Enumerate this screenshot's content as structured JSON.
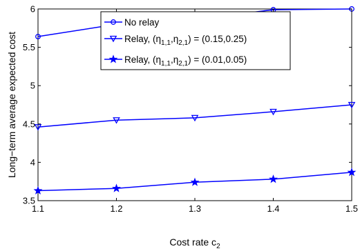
{
  "chart_data": {
    "type": "line",
    "xlabel": "Cost rate c",
    "xlabel_sub": "2",
    "ylabel": "Long−term average expected cost",
    "xlim": [
      1.1,
      1.5
    ],
    "ylim": [
      3.5,
      6
    ],
    "xticks": [
      "1.1",
      "1.2",
      "1.3",
      "1.4",
      "1.5"
    ],
    "yticks": [
      "3.5",
      "4",
      "4.5",
      "5",
      "5.5",
      "6"
    ],
    "grid": false,
    "legend_position": "top-center",
    "x": [
      1.1,
      1.2,
      1.3,
      1.4,
      1.5
    ],
    "series": [
      {
        "name": "No relay",
        "marker": "circle",
        "values": [
          5.64,
          5.8,
          5.87,
          5.99,
          6.0
        ],
        "legend": {
          "main": "No relay"
        }
      },
      {
        "name": "Relay, (η1,1,η2,1) = (0.15,0.25)",
        "marker": "triangle-down",
        "values": [
          4.46,
          4.55,
          4.58,
          4.66,
          4.75
        ],
        "legend": {
          "prefix": "Relay, (η",
          "sub1": "1,1",
          "mid": ",η",
          "sub2": "2,1",
          "suffix": ") = (0.15,0.25)"
        }
      },
      {
        "name": "Relay, (η1,1,η2,1) = (0.01,0.05)",
        "marker": "star",
        "values": [
          3.63,
          3.66,
          3.74,
          3.78,
          3.87
        ],
        "legend": {
          "prefix": "Relay, (η",
          "sub1": "1,1",
          "mid": ",η",
          "sub2": "2,1",
          "suffix": ") = (0.01,0.05)"
        }
      }
    ],
    "colors": {
      "line": "#0000ff",
      "axes": "#000000",
      "background": "#ffffff"
    }
  }
}
